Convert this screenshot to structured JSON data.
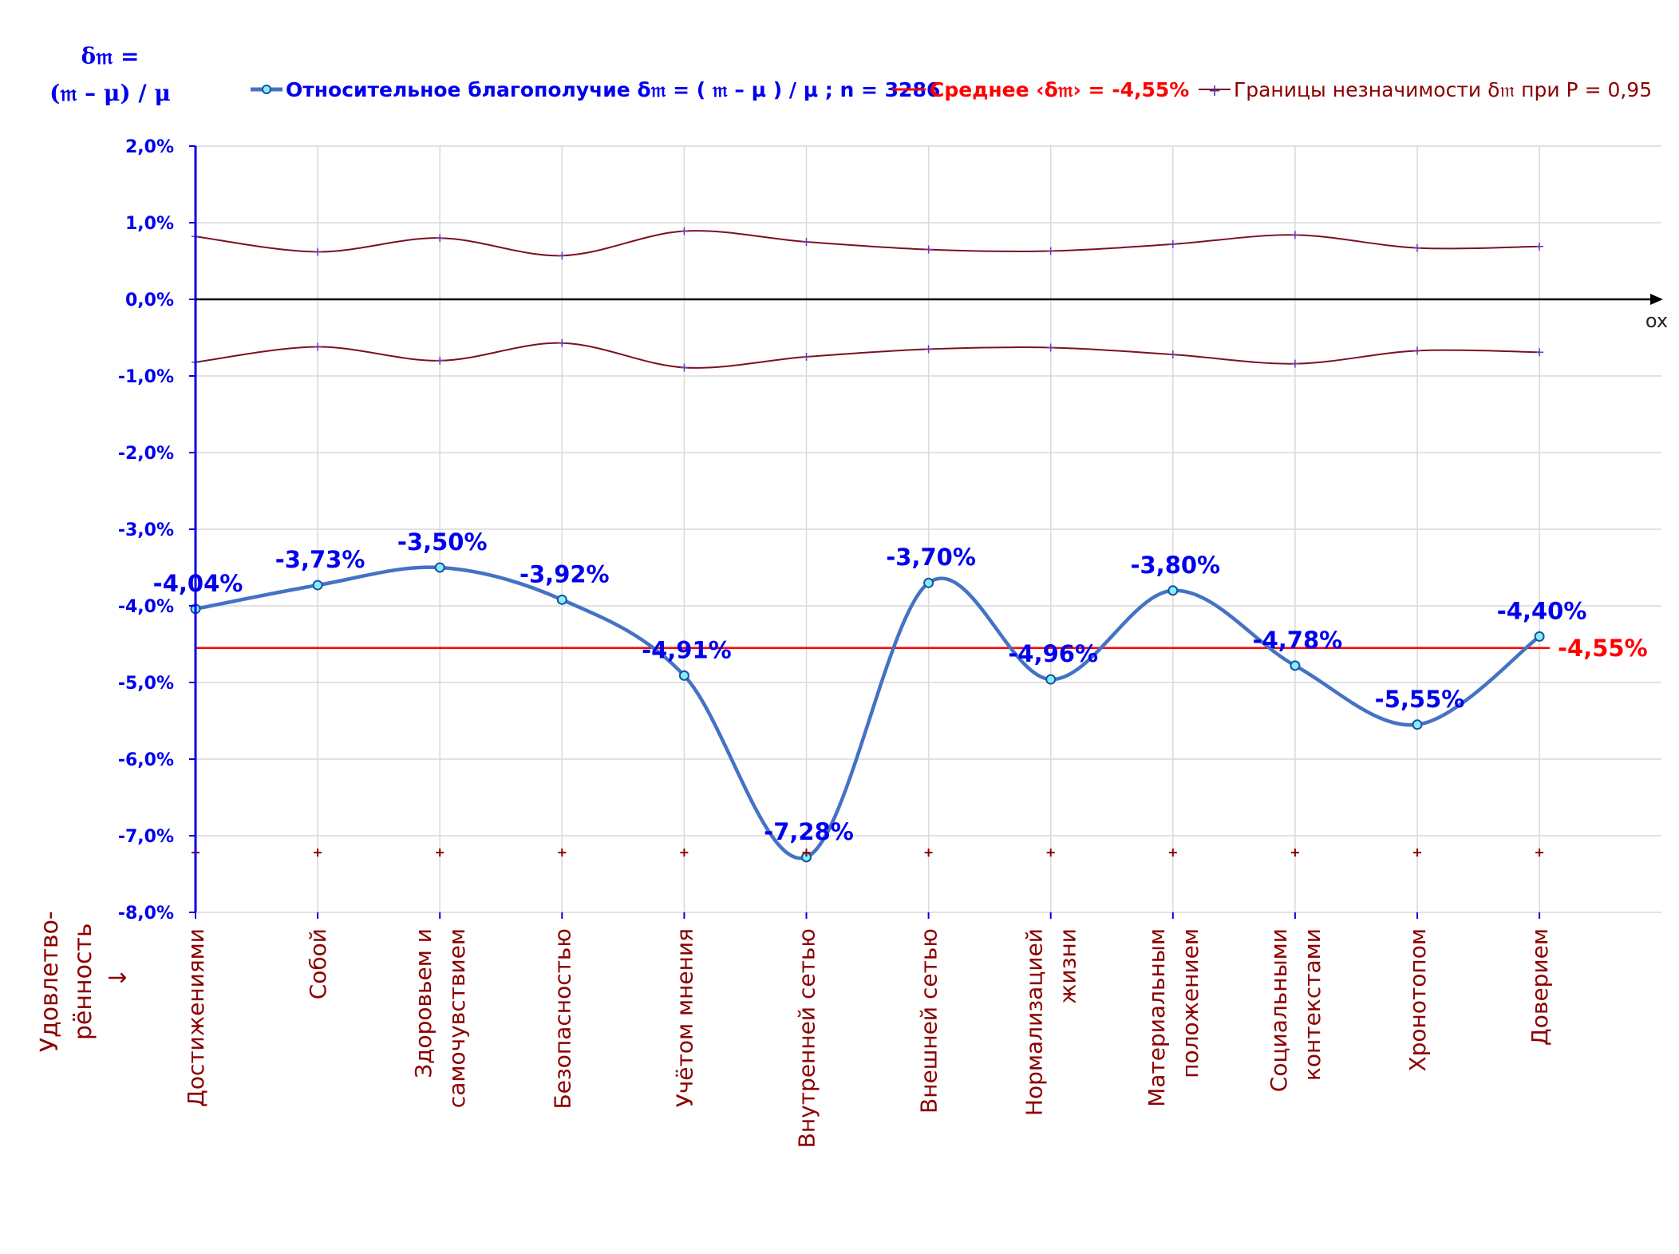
{
  "chart_data": {
    "type": "line",
    "ylabel_lines": [
      "δ𝔪 =",
      "(𝔪 – μ) / μ"
    ],
    "axis_x_name": "ox",
    "x_title_lines": [
      "Удовлетво-",
      "рённость",
      "↓"
    ],
    "categories": [
      [
        "Достижениями"
      ],
      [
        "Собой"
      ],
      [
        "Здоровьем и",
        "самочувствием"
      ],
      [
        "Безопасностью"
      ],
      [
        "Учётом мнения"
      ],
      [
        "Внутренней сетью"
      ],
      [
        "Внешней сетью"
      ],
      [
        "Нормализацией",
        "жизни"
      ],
      [
        "Материальным",
        "положением"
      ],
      [
        "Социальными",
        "контекстами"
      ],
      [
        "Хронотопом"
      ],
      [
        "Доверием"
      ]
    ],
    "ylim": [
      -8.0,
      2.0
    ],
    "y_ticks": [
      "2,0%",
      "1,0%",
      "0,0%",
      "-1,0%",
      "-2,0%",
      "-3,0%",
      "-4,0%",
      "-5,0%",
      "-6,0%",
      "-7,0%",
      "-8,0%"
    ],
    "series": [
      {
        "name": "Относительное благополучие δ𝔪 = ( 𝔪 – μ ) / μ ; n = 3286",
        "color": "#4472c4",
        "values": [
          -4.04,
          -3.73,
          -3.5,
          -3.92,
          -4.91,
          -7.28,
          -3.7,
          -4.96,
          -3.8,
          -4.78,
          -5.55,
          -4.4
        ],
        "labels": [
          "-4,04%",
          "-3,73%",
          "-3,50%",
          "-3,92%",
          "-4,91%",
          "-7,28%",
          "-3,70%",
          "-4,96%",
          "-3,80%",
          "-4,78%",
          "-5,55%",
          "-4,40%"
        ]
      },
      {
        "name": "Среднее ‹δ𝔪› = -4,55%",
        "color": "#ff0000",
        "value": -4.55,
        "label": "-4,55%"
      },
      {
        "name": "Границы незначимости δ𝔪 при P = 0,95",
        "color": "#7b1020",
        "upper": [
          0.82,
          0.62,
          0.8,
          0.57,
          0.89,
          0.75,
          0.65,
          0.63,
          0.72,
          0.84,
          0.67,
          0.69
        ],
        "lower": [
          -0.82,
          -0.62,
          -0.8,
          -0.57,
          -0.89,
          -0.75,
          -0.65,
          -0.63,
          -0.72,
          -0.84,
          -0.67,
          -0.69
        ]
      }
    ],
    "bottom_markers_value": -7.22,
    "grid": true,
    "legend_position": "top"
  }
}
